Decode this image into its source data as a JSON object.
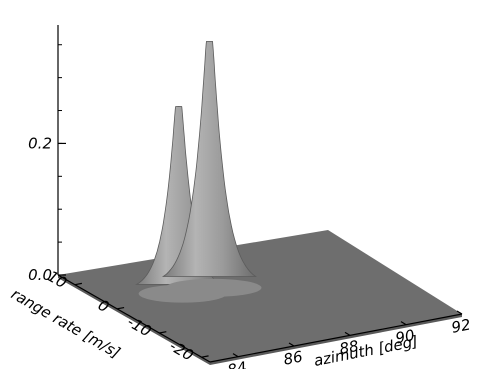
{
  "chart_data": {
    "type": "surface",
    "title": "",
    "z_axis": {
      "label": "",
      "range": [
        0.0,
        0.38
      ],
      "ticks": [
        {
          "value": 0.0,
          "label": "0.0"
        },
        {
          "value": 0.2,
          "label": "0.2"
        }
      ]
    },
    "x_axis": {
      "label": "azimuth [deg]",
      "range": [
        83,
        92
      ],
      "ticks": [
        {
          "value": 84,
          "label": "84"
        },
        {
          "value": 86,
          "label": "86"
        },
        {
          "value": 88,
          "label": "88"
        },
        {
          "value": 90,
          "label": "90"
        },
        {
          "value": 92,
          "label": "92"
        }
      ]
    },
    "y_axis": {
      "label": "range rate [m/s]",
      "range": [
        -22,
        14
      ],
      "ticks": [
        {
          "value": 10,
          "label": "10"
        },
        {
          "value": 0,
          "label": "0"
        },
        {
          "value": -10,
          "label": "-10"
        },
        {
          "value": -20,
          "label": "-20"
        }
      ]
    },
    "peaks": [
      {
        "azimuth": 85.5,
        "range_rate": 2,
        "amplitude": 0.28
      },
      {
        "azimuth": 86.6,
        "range_rate": 2,
        "amplitude": 0.37
      }
    ],
    "grid": false,
    "legend": "none"
  }
}
